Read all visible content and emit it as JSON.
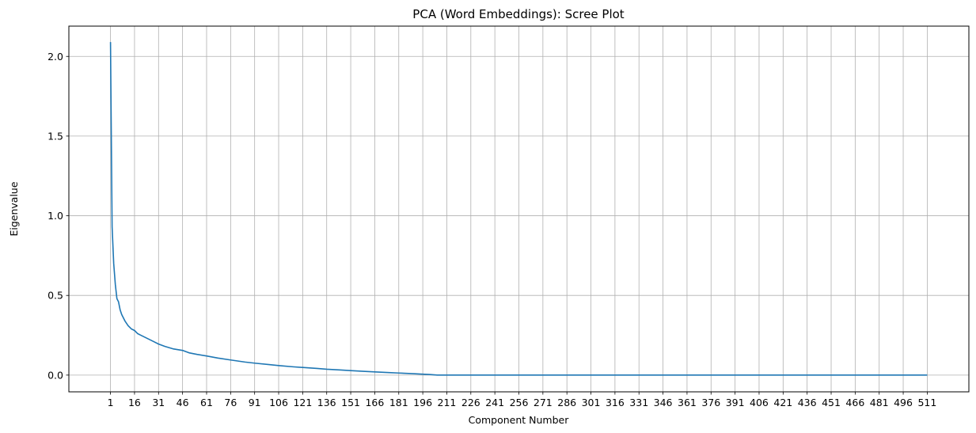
{
  "chart_data": {
    "type": "line",
    "title": "PCA (Word Embeddings): Scree Plot",
    "xlabel": "Component Number",
    "ylabel": "Eigenvalue",
    "xlim": [
      -25,
      537
    ],
    "ylim": [
      -0.105,
      2.19
    ],
    "x_ticks": [
      1,
      16,
      31,
      46,
      61,
      76,
      91,
      106,
      121,
      136,
      151,
      166,
      181,
      196,
      211,
      226,
      241,
      256,
      271,
      286,
      301,
      316,
      331,
      346,
      361,
      376,
      391,
      406,
      421,
      436,
      451,
      466,
      481,
      496,
      511
    ],
    "y_ticks": [
      0.0,
      0.5,
      1.0,
      1.5,
      2.0
    ],
    "y_tick_labels": [
      "0.0",
      "0.5",
      "1.0",
      "1.5",
      "2.0"
    ],
    "grid": true,
    "color": "#1f77b4",
    "series": [
      {
        "x": [
          1,
          2,
          3,
          4,
          5,
          6,
          7,
          8,
          9,
          10,
          12,
          14,
          16,
          18,
          20,
          22,
          25,
          28,
          31,
          35,
          40,
          46,
          50,
          55,
          61,
          68,
          76,
          85,
          91,
          100,
          106,
          115,
          121,
          130,
          136,
          145,
          151,
          160,
          166,
          175,
          181,
          190,
          196,
          200,
          205,
          250,
          300,
          350,
          400,
          450,
          500,
          511
        ],
        "y": [
          2.09,
          0.93,
          0.7,
          0.57,
          0.48,
          0.46,
          0.41,
          0.38,
          0.36,
          0.34,
          0.31,
          0.29,
          0.28,
          0.26,
          0.25,
          0.24,
          0.225,
          0.21,
          0.195,
          0.18,
          0.165,
          0.155,
          0.14,
          0.13,
          0.12,
          0.107,
          0.095,
          0.082,
          0.075,
          0.066,
          0.06,
          0.052,
          0.048,
          0.042,
          0.037,
          0.032,
          0.028,
          0.023,
          0.02,
          0.016,
          0.013,
          0.009,
          0.006,
          0.004,
          0.0,
          0.0,
          0.0,
          0.0,
          0.0,
          0.0,
          0.0,
          0.0
        ]
      }
    ]
  }
}
